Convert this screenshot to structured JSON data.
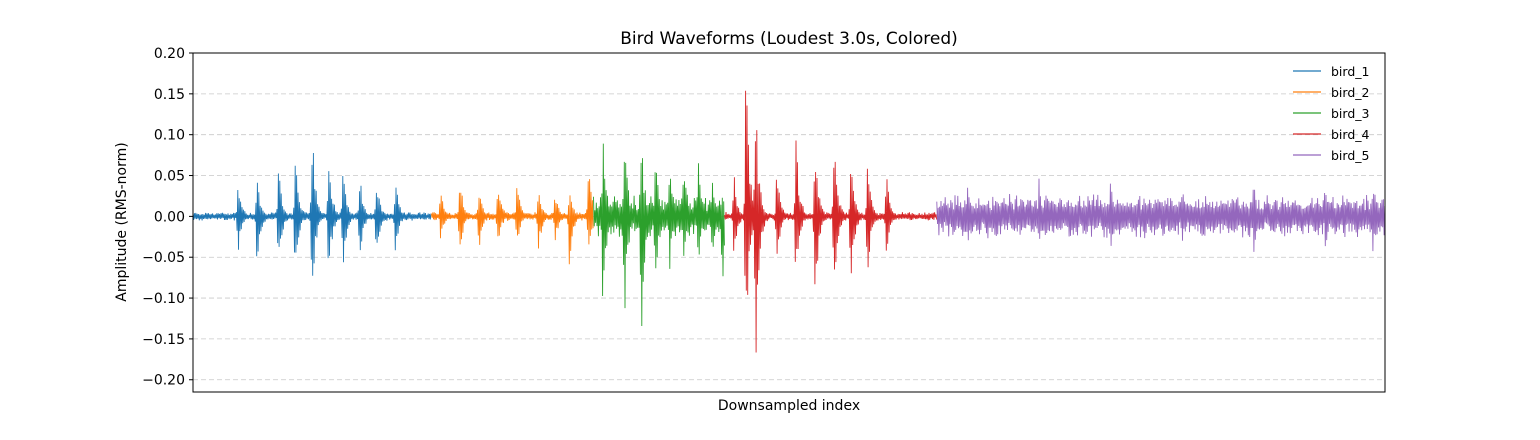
{
  "chart_data": {
    "type": "line",
    "title": "Bird Waveforms (Loudest 3.0s, Colored)",
    "xlabel": "Downsampled index",
    "ylabel": "Amplitude (RMS-norm)",
    "ylim": [
      -0.215,
      0.2
    ],
    "xlim": [
      0,
      5
    ],
    "y_ticks": [
      0.2,
      0.15,
      0.1,
      0.05,
      0.0,
      -0.05,
      -0.1,
      -0.15,
      -0.2
    ],
    "y_tick_labels": [
      "0.20",
      "0.15",
      "0.10",
      "0.05",
      "0.00",
      "−0.05",
      "−0.10",
      "−0.15",
      "−0.20"
    ],
    "grid": "y-dashed",
    "legend_position": "top-right",
    "series": [
      {
        "name": "bird_1",
        "color": "#1f77b4",
        "x_range": [
          0,
          1
        ],
        "noise_floor": 0.004,
        "bursts": [
          {
            "x": 0.19,
            "max": 0.048,
            "min": -0.045
          },
          {
            "x": 0.27,
            "max": 0.053,
            "min": -0.068
          },
          {
            "x": 0.36,
            "max": 0.061,
            "min": -0.067
          },
          {
            "x": 0.43,
            "max": 0.072,
            "min": -0.078
          },
          {
            "x": 0.5,
            "max": 0.112,
            "min": -0.113
          },
          {
            "x": 0.57,
            "max": 0.083,
            "min": -0.08
          },
          {
            "x": 0.63,
            "max": 0.07,
            "min": -0.067
          },
          {
            "x": 0.7,
            "max": 0.057,
            "min": -0.06
          },
          {
            "x": 0.77,
            "max": 0.052,
            "min": -0.055
          },
          {
            "x": 0.85,
            "max": 0.045,
            "min": -0.048
          }
        ]
      },
      {
        "name": "bird_2",
        "color": "#ff7f0e",
        "x_range": [
          1,
          1.68
        ],
        "noise_floor": 0.004,
        "bursts": [
          {
            "x": 1.04,
            "max": 0.035,
            "min": -0.032
          },
          {
            "x": 1.12,
            "max": 0.058,
            "min": -0.05
          },
          {
            "x": 1.2,
            "max": 0.04,
            "min": -0.044
          },
          {
            "x": 1.28,
            "max": 0.048,
            "min": -0.042
          },
          {
            "x": 1.36,
            "max": 0.042,
            "min": -0.04
          },
          {
            "x": 1.45,
            "max": 0.038,
            "min": -0.045
          },
          {
            "x": 1.52,
            "max": 0.03,
            "min": -0.035
          },
          {
            "x": 1.58,
            "max": 0.038,
            "min": -0.065
          },
          {
            "x": 1.66,
            "max": 0.075,
            "min": -0.055
          }
        ]
      },
      {
        "name": "bird_3",
        "color": "#2ca02c",
        "x_range": [
          1.68,
          2.23
        ],
        "noise_floor": 0.02,
        "bursts": [
          {
            "x": 1.72,
            "max": 0.1,
            "min": -0.132
          },
          {
            "x": 1.81,
            "max": 0.118,
            "min": -0.145
          },
          {
            "x": 1.88,
            "max": 0.115,
            "min": -0.163
          },
          {
            "x": 1.94,
            "max": 0.098,
            "min": -0.1
          },
          {
            "x": 2.0,
            "max": 0.08,
            "min": -0.075
          },
          {
            "x": 2.06,
            "max": 0.075,
            "min": -0.068
          },
          {
            "x": 2.12,
            "max": 0.07,
            "min": -0.065
          },
          {
            "x": 2.18,
            "max": 0.06,
            "min": -0.06
          },
          {
            "x": 2.22,
            "max": 0.038,
            "min": -0.098
          }
        ]
      },
      {
        "name": "bird_4",
        "color": "#d62728",
        "x_range": [
          2.23,
          3.12
        ],
        "noise_floor": 0.004,
        "bursts": [
          {
            "x": 2.27,
            "max": 0.055,
            "min": -0.055
          },
          {
            "x": 2.32,
            "max": 0.181,
            "min": -0.176
          },
          {
            "x": 2.36,
            "max": 0.155,
            "min": -0.197
          },
          {
            "x": 2.45,
            "max": 0.06,
            "min": -0.06
          },
          {
            "x": 2.53,
            "max": 0.1,
            "min": -0.085
          },
          {
            "x": 2.61,
            "max": 0.09,
            "min": -0.118
          },
          {
            "x": 2.69,
            "max": 0.102,
            "min": -0.1
          },
          {
            "x": 2.76,
            "max": 0.085,
            "min": -0.098
          },
          {
            "x": 2.83,
            "max": 0.07,
            "min": -0.08
          },
          {
            "x": 2.91,
            "max": 0.06,
            "min": -0.055
          }
        ]
      },
      {
        "name": "bird_5",
        "color": "#9467bd",
        "x_range": [
          3.12,
          5
        ],
        "noise_floor": 0.02,
        "bursts": [
          {
            "x": 3.25,
            "max": 0.045,
            "min": -0.035
          },
          {
            "x": 3.55,
            "max": 0.05,
            "min": -0.04
          },
          {
            "x": 3.85,
            "max": 0.048,
            "min": -0.045
          },
          {
            "x": 4.15,
            "max": 0.048,
            "min": -0.042
          },
          {
            "x": 4.45,
            "max": 0.045,
            "min": -0.045
          },
          {
            "x": 4.75,
            "max": 0.05,
            "min": -0.045
          },
          {
            "x": 4.95,
            "max": 0.048,
            "min": -0.048
          }
        ]
      }
    ]
  }
}
